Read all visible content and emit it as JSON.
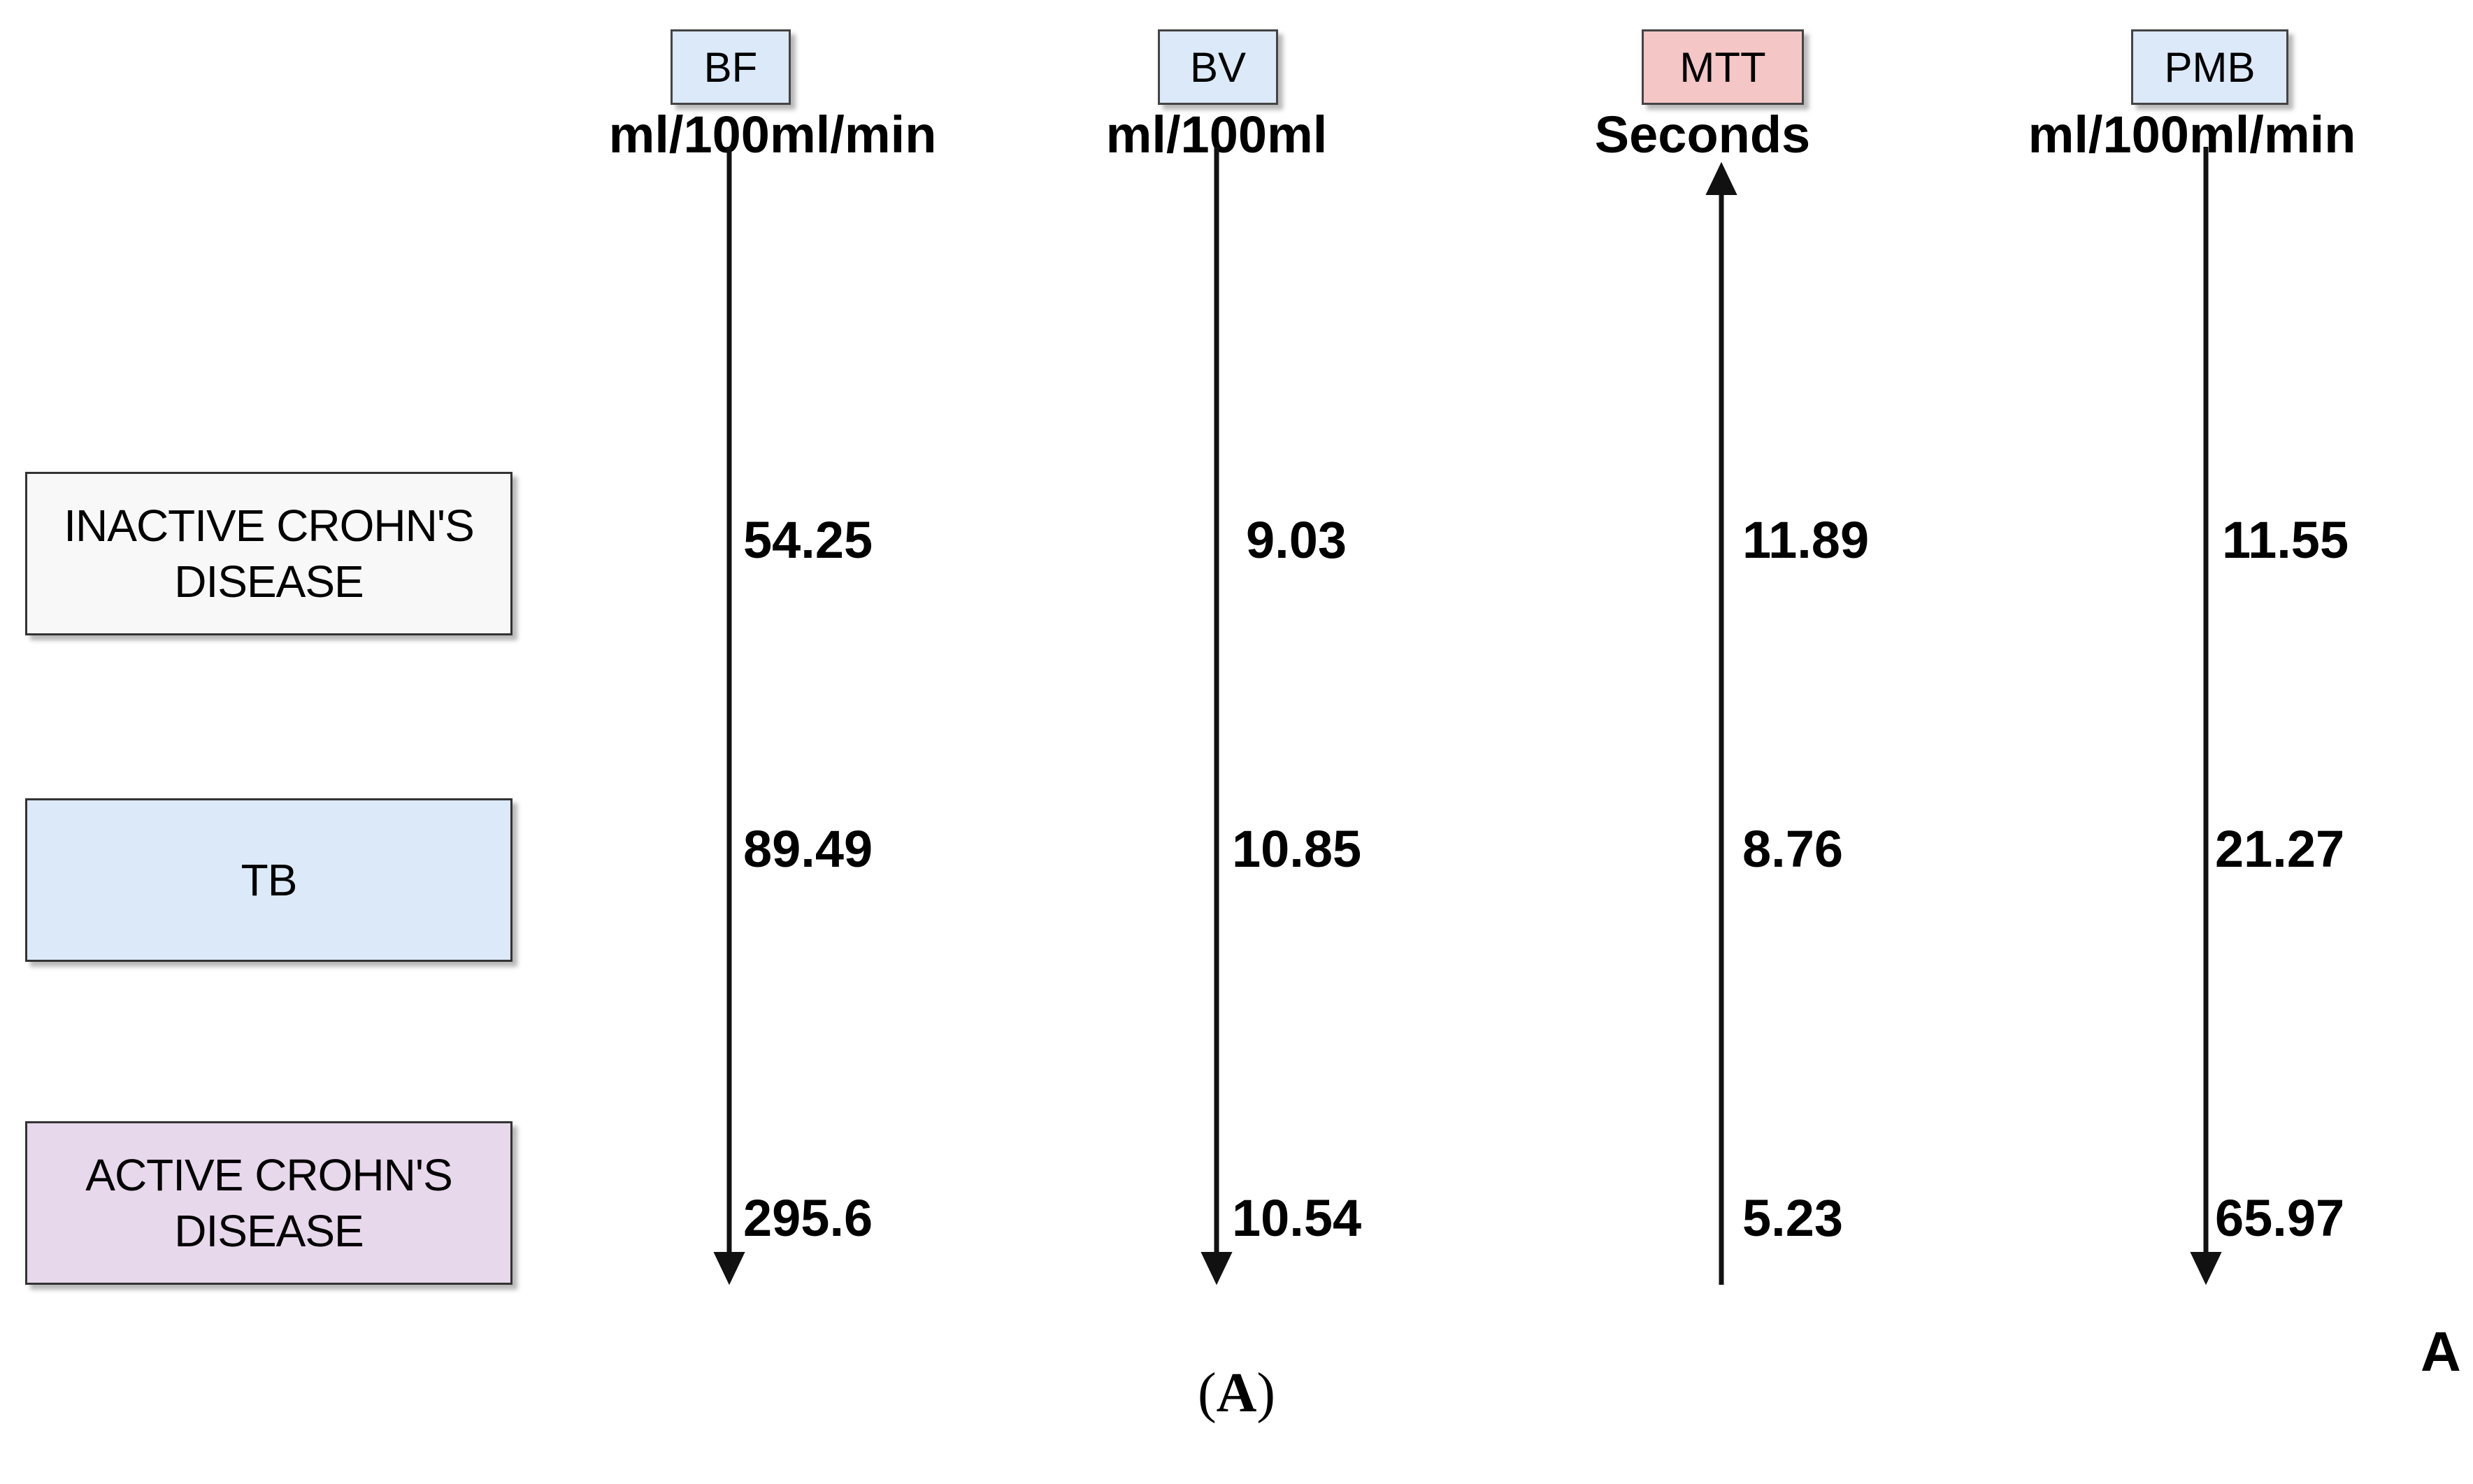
{
  "parameters": [
    {
      "id": "bf",
      "label": "BF",
      "unit": "ml/100ml/min",
      "direction": "down",
      "color": "#dbe9f9"
    },
    {
      "id": "bv",
      "label": "BV",
      "unit": "ml/100ml",
      "direction": "down",
      "color": "#dbe9f9"
    },
    {
      "id": "mtt",
      "label": "MTT",
      "unit": "Seconds",
      "direction": "up",
      "color": "#f5c6c6"
    },
    {
      "id": "pmb",
      "label": "PMB",
      "unit": "ml/100ml/min",
      "direction": "down",
      "color": "#dbe9f9"
    }
  ],
  "conditions": [
    {
      "id": "inactive",
      "line1": "INACTIVE CROHN'S",
      "line2": "DISEASE",
      "color": "#f8f8f8"
    },
    {
      "id": "tb",
      "line1": "TB",
      "line2": "",
      "color": "#dbe9f9"
    },
    {
      "id": "active",
      "line1": "ACTIVE CROHN'S",
      "line2": "DISEASE",
      "color": "#e8d8ec"
    }
  ],
  "values": {
    "inactive": {
      "bf": "54.25",
      "bv": "9.03",
      "mtt": "11.89",
      "pmb": "11.55"
    },
    "tb": {
      "bf": "89.49",
      "bv": "10.85",
      "mtt": "8.76",
      "pmb": "21.27"
    },
    "active": {
      "bf": "295.6",
      "bv": "10.54",
      "mtt": "5.23",
      "pmb": "65.97"
    }
  },
  "panel_letter": "A",
  "caption": {
    "open": "(",
    "letter": "A",
    "close": ")"
  }
}
